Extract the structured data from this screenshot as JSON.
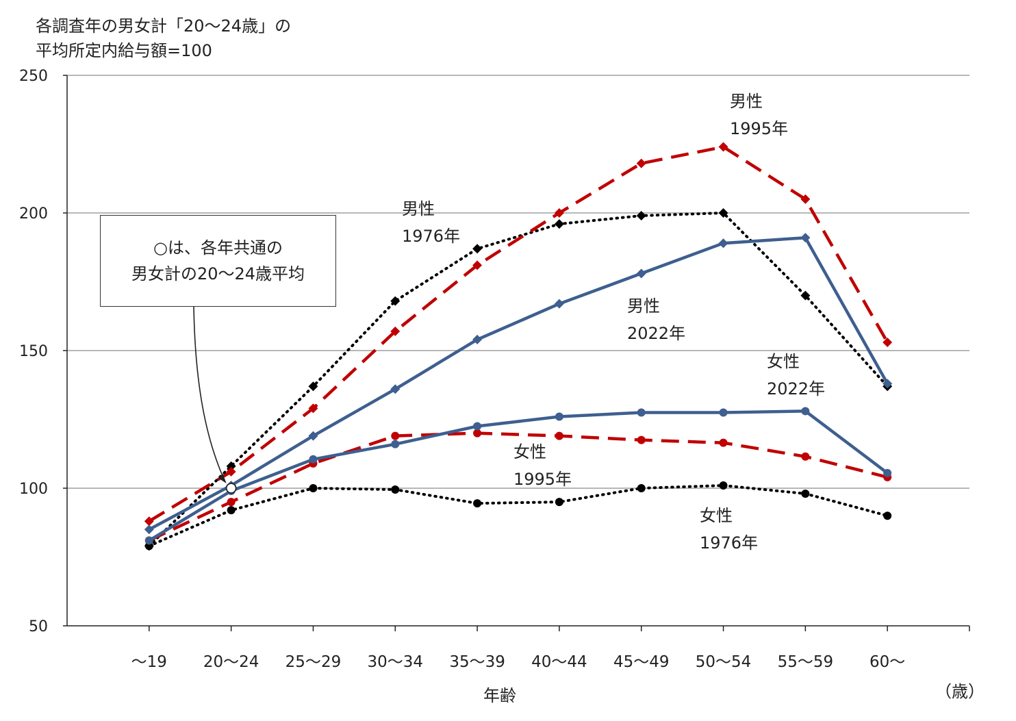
{
  "chart_data": {
    "type": "line",
    "y_title_lines": [
      "各調査年の男女計「20～24歳」の",
      "平均所定内給与額=100"
    ],
    "xlabel": "年齢",
    "x_unit": "（歳）",
    "categories": [
      "～19",
      "20～24",
      "25～29",
      "30～34",
      "35～39",
      "40～44",
      "45～49",
      "50～54",
      "55～59",
      "60～"
    ],
    "ylim": [
      50,
      250
    ],
    "yticks": [
      50,
      100,
      150,
      200,
      250
    ],
    "grid": true,
    "series": [
      {
        "name": "男性 1976年",
        "label_lines": [
          "男性",
          "1976年"
        ],
        "color": "#000000",
        "style": "dotted",
        "marker": "diamond",
        "values": [
          79,
          108,
          137,
          168,
          187,
          196,
          199,
          200,
          170,
          137
        ]
      },
      {
        "name": "男性 1995年",
        "label_lines": [
          "男性",
          "1995年"
        ],
        "color": "#c00000",
        "style": "dashed",
        "marker": "diamond",
        "values": [
          88,
          106,
          129,
          157,
          181,
          200,
          218,
          224,
          205,
          153
        ]
      },
      {
        "name": "男性 2022年",
        "label_lines": [
          "男性",
          "2022年"
        ],
        "color": "#3e5f8f",
        "style": "solid",
        "marker": "diamond",
        "values": [
          85,
          101,
          119,
          136,
          154,
          167,
          178,
          189,
          191,
          138
        ]
      },
      {
        "name": "女性 1976年",
        "label_lines": [
          "女性",
          "1976年"
        ],
        "color": "#000000",
        "style": "dotted",
        "marker": "circle",
        "values": [
          79,
          92,
          100,
          99.5,
          94.5,
          95,
          100,
          101,
          98,
          90
        ]
      },
      {
        "name": "女性 1995年",
        "label_lines": [
          "女性",
          "1995年"
        ],
        "color": "#c00000",
        "style": "dashed",
        "marker": "circle",
        "values": [
          81,
          95,
          109,
          119,
          120,
          119,
          117.5,
          116.5,
          111.5,
          104
        ]
      },
      {
        "name": "女性 2022年",
        "label_lines": [
          "女性",
          "2022年"
        ],
        "color": "#3e5f8f",
        "style": "solid",
        "marker": "circle",
        "values": [
          81,
          99,
          110.5,
          116,
          122.5,
          126,
          127.5,
          127.5,
          128,
          105.5
        ]
      }
    ],
    "annotation": {
      "lines": [
        "○は、各年共通の",
        "男女計の20～24歳平均"
      ],
      "points_to": {
        "category": "20～24",
        "value": 100
      }
    }
  }
}
